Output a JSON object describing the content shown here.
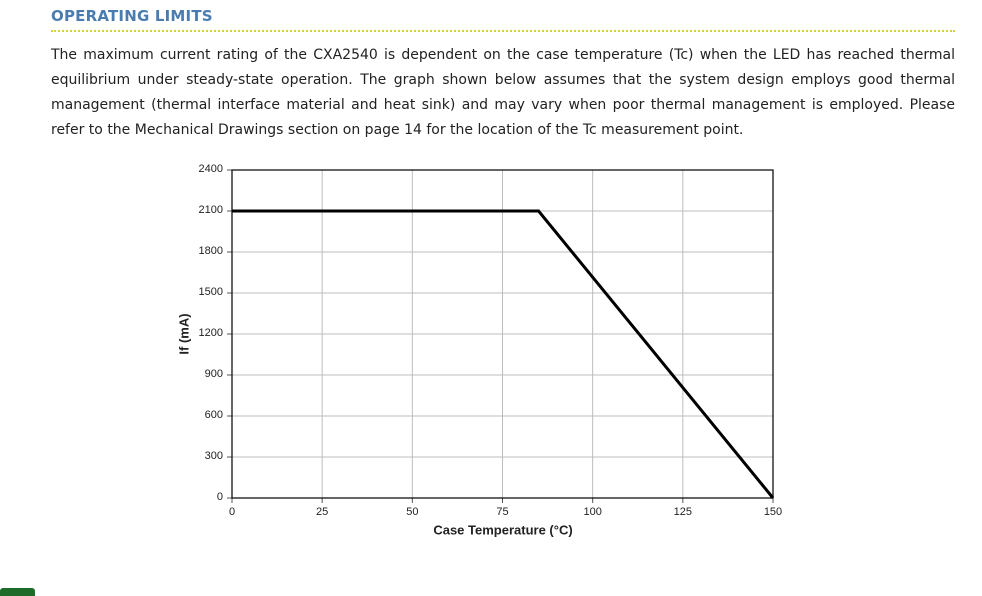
{
  "header": {
    "title": "OPERATING LIMITS"
  },
  "paragraph": "The maximum current rating of the CXA2540 is dependent on the case temperature (Tc) when the LED has reached thermal equilibrium under steady-state operation. The graph shown below assumes that the system design employs good thermal management (thermal interface material and heat sink) and may vary when poor thermal management is employed. Please refer to the Mechanical Drawings section on page 14 for the location of the Tc measurement point.",
  "chart_data": {
    "type": "line",
    "x_label": "Case Temperature (°C)",
    "y_label": "If (mA)",
    "x": [
      0,
      85,
      150
    ],
    "values": [
      2100,
      2100,
      0
    ],
    "color": "#000000",
    "xlim": [
      0,
      150
    ],
    "xticks": [
      0,
      25,
      50,
      75,
      100,
      125,
      150
    ],
    "ylim": [
      0,
      2400
    ],
    "yticks": [
      0,
      300,
      600,
      900,
      1200,
      1500,
      1800,
      2100,
      2400
    ],
    "grid": true
  }
}
